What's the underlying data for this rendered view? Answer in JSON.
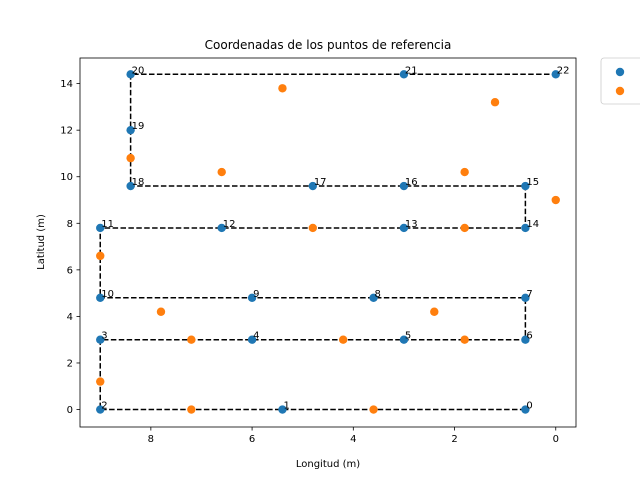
{
  "chart_data": {
    "type": "scatter",
    "title": "Coordenadas de los puntos de referencia",
    "xlabel": "Longitud (m)",
    "ylabel": "Latitud (m)",
    "x_inverted": true,
    "xlim": [
      9.4,
      -0.4
    ],
    "ylim": [
      -0.75,
      15.1
    ],
    "x_ticks": [
      8,
      6,
      4,
      2,
      0
    ],
    "y_ticks": [
      0,
      2,
      4,
      6,
      8,
      10,
      12,
      14
    ],
    "grid": false,
    "legend_position": "upper-right-outside",
    "path_style": "dashed",
    "colors": {
      "series1": "#1f77b4",
      "series2": "#ff7f0e",
      "path": "#000000"
    },
    "series": [
      {
        "points": [
          {
            "label": "0",
            "x": 0.6,
            "y": 0
          },
          {
            "label": "1",
            "x": 5.4,
            "y": 0
          },
          {
            "label": "2",
            "x": 9.0,
            "y": 0
          },
          {
            "label": "3",
            "x": 9.0,
            "y": 3.0
          },
          {
            "label": "4",
            "x": 6.0,
            "y": 3.0
          },
          {
            "label": "5",
            "x": 3.0,
            "y": 3.0
          },
          {
            "label": "6",
            "x": 0.6,
            "y": 3.0
          },
          {
            "label": "7",
            "x": 0.6,
            "y": 4.8
          },
          {
            "label": "8",
            "x": 3.6,
            "y": 4.8
          },
          {
            "label": "9",
            "x": 6.0,
            "y": 4.8
          },
          {
            "label": "10",
            "x": 9.0,
            "y": 4.8
          },
          {
            "label": "11",
            "x": 9.0,
            "y": 7.8
          },
          {
            "label": "12",
            "x": 6.6,
            "y": 7.8
          },
          {
            "label": "13",
            "x": 3.0,
            "y": 7.8
          },
          {
            "label": "14",
            "x": 0.6,
            "y": 7.8
          },
          {
            "label": "15",
            "x": 0.6,
            "y": 9.6
          },
          {
            "label": "16",
            "x": 3.0,
            "y": 9.6
          },
          {
            "label": "17",
            "x": 4.8,
            "y": 9.6
          },
          {
            "label": "18",
            "x": 8.4,
            "y": 9.6
          },
          {
            "label": "19",
            "x": 8.4,
            "y": 12.0
          },
          {
            "label": "20",
            "x": 8.4,
            "y": 14.4
          },
          {
            "label": "21",
            "x": 3.0,
            "y": 14.4
          },
          {
            "label": "22",
            "x": 0.0,
            "y": 14.4
          }
        ]
      },
      {
        "points": [
          {
            "x": 7.2,
            "y": 0
          },
          {
            "x": 3.6,
            "y": 0
          },
          {
            "x": 9.0,
            "y": 1.2
          },
          {
            "x": 7.2,
            "y": 3.0
          },
          {
            "x": 4.2,
            "y": 3.0
          },
          {
            "x": 1.8,
            "y": 3.0
          },
          {
            "x": 7.8,
            "y": 4.2
          },
          {
            "x": 2.4,
            "y": 4.2
          },
          {
            "x": 9.0,
            "y": 6.6
          },
          {
            "x": 4.8,
            "y": 7.8
          },
          {
            "x": 1.8,
            "y": 7.8
          },
          {
            "x": 0.0,
            "y": 9.0
          },
          {
            "x": 6.6,
            "y": 10.2
          },
          {
            "x": 1.8,
            "y": 10.2
          },
          {
            "x": 8.4,
            "y": 10.8
          },
          {
            "x": 1.2,
            "y": 13.2
          },
          {
            "x": 5.4,
            "y": 13.8
          }
        ]
      }
    ]
  }
}
